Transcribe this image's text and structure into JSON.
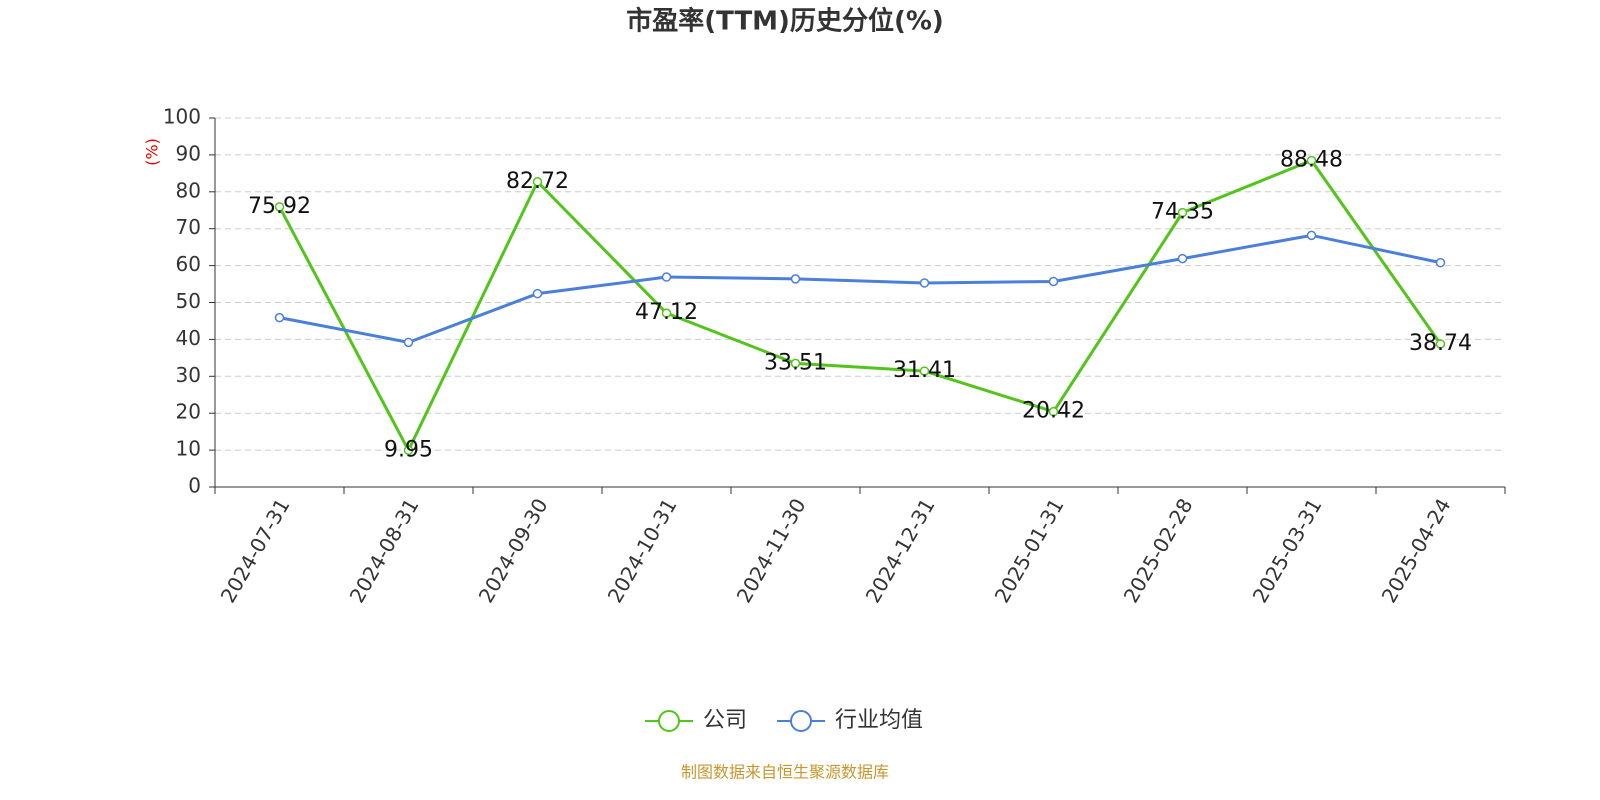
{
  "chart_data": {
    "type": "line",
    "title": "市盈率(TTM)历史分位(%)",
    "y_label": "(%)",
    "categories": [
      "2024-07-31",
      "2024-08-31",
      "2024-09-30",
      "2024-10-31",
      "2024-11-30",
      "2024-12-31",
      "2025-01-31",
      "2025-02-28",
      "2025-03-31",
      "2025-04-24"
    ],
    "series": [
      {
        "name": "公司",
        "color": "#52c41a",
        "values": [
          75.92,
          9.95,
          82.72,
          47.12,
          33.51,
          31.41,
          20.42,
          74.35,
          88.48,
          38.74
        ],
        "show_labels": true
      },
      {
        "name": "行业均值",
        "color": "#4a7fdb",
        "values": [
          45.9,
          39.2,
          52.4,
          56.9,
          56.4,
          55.3,
          55.7,
          61.9,
          68.2,
          60.8
        ],
        "show_labels": false
      }
    ],
    "ylim": [
      0,
      100
    ],
    "yticks": [
      0,
      10,
      20,
      30,
      40,
      50,
      60,
      70,
      80,
      90,
      100
    ],
    "grid": true,
    "legend_position": "bottom",
    "source": "制图数据来自恒生聚源数据库"
  }
}
